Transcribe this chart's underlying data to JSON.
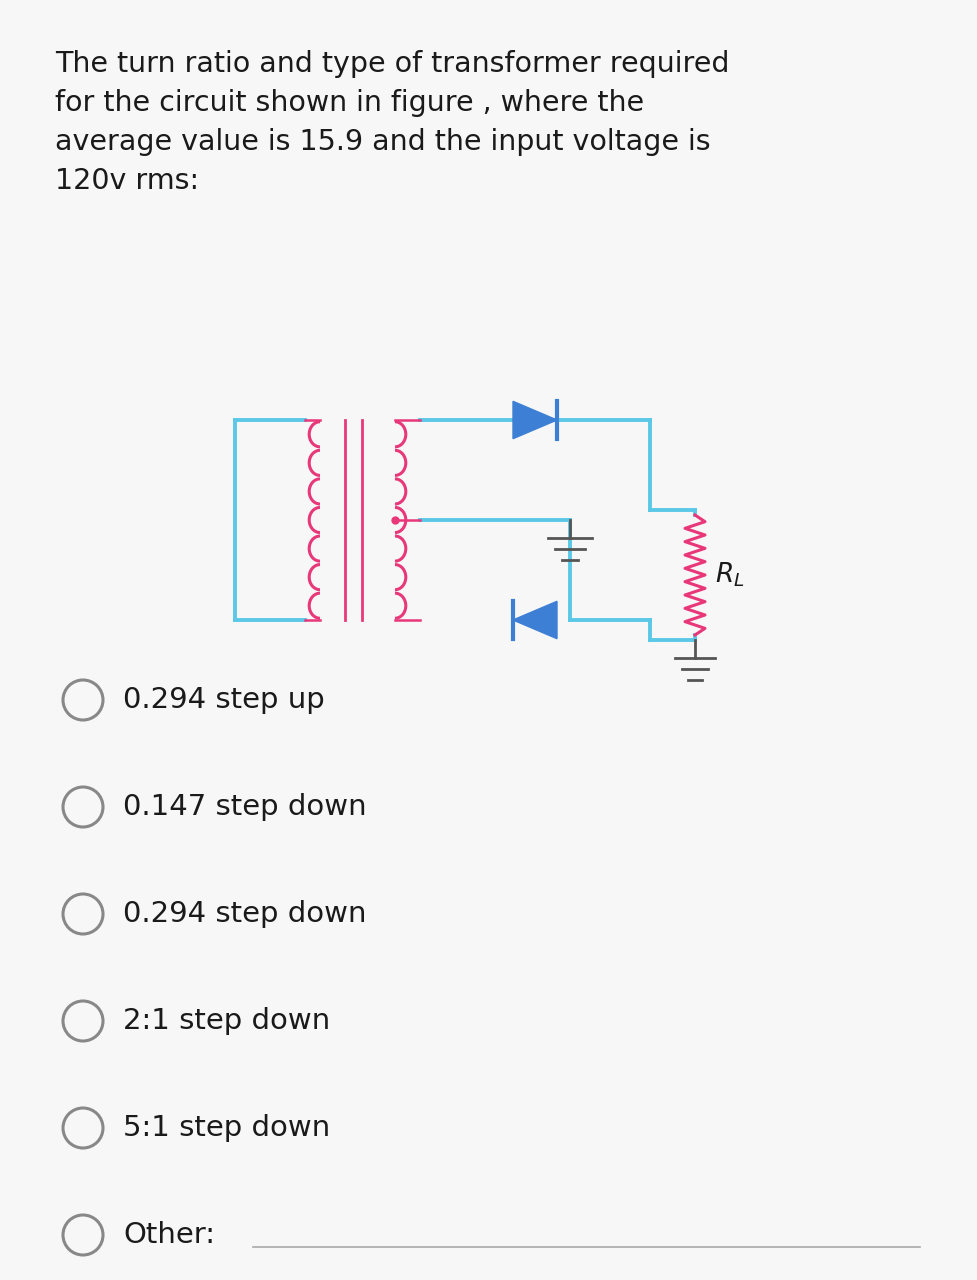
{
  "title_text": "The turn ratio and type of transformer required\nfor the circuit shown in figure , where the\naverage value is 15.9 and the input voltage is\n120v rms:",
  "title_fontsize": 20.5,
  "title_color": "#1a1a1a",
  "bg_color": "#f7f7f7",
  "circuit_color": "#5bc8e8",
  "transformer_color": "#e8387a",
  "resistor_color": "#e8387a",
  "diode_color": "#3d7fd4",
  "options": [
    "0.294 step up",
    "0.147 step down",
    "0.294 step down",
    "2:1 step down",
    "5:1 step down",
    "Other:"
  ],
  "options_fontsize": 21,
  "options_color": "#1a1a1a",
  "circle_color": "#888888",
  "rl_label": "$R_L$",
  "fig_width": 9.78,
  "fig_height": 12.8
}
